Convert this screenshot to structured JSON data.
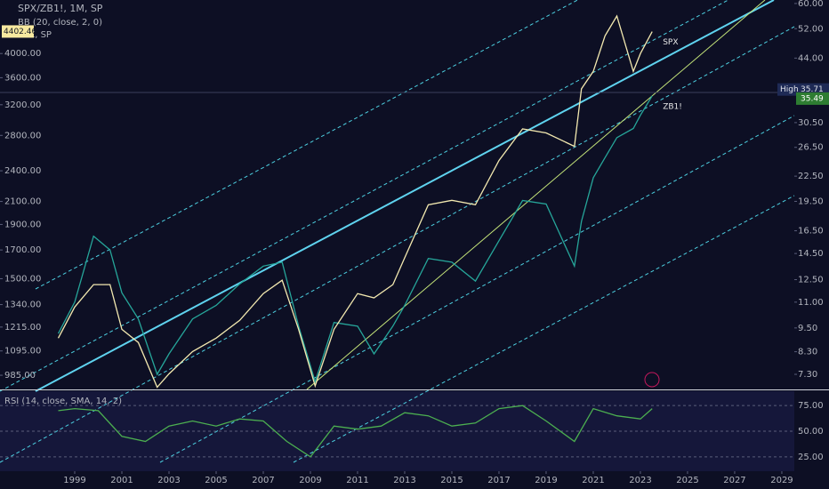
{
  "chart_data": [
    {
      "type": "line",
      "title": "SPX/ZB1!, 1M, SP",
      "indicators": [
        "BB (20, close, 2, 0)",
        "SPX, SP"
      ],
      "x": [
        1998.3,
        1999.0,
        1999.8,
        2000.5,
        2001.0,
        2001.7,
        2002.5,
        2003.0,
        2004.0,
        2005.0,
        2006.0,
        2007.0,
        2007.8,
        2008.5,
        2009.2,
        2010.0,
        2011.0,
        2011.7,
        2012.5,
        2013.0,
        2014.0,
        2015.0,
        2016.0,
        2017.0,
        2018.0,
        2019.0,
        2020.2,
        2020.5,
        2021.0,
        2021.5,
        2022.0,
        2022.7,
        2023.0,
        2023.5
      ],
      "series": [
        {
          "name": "ZB1!",
          "color": "#26a69a",
          "axis": "y2",
          "values": [
            9.2,
            11.0,
            16.0,
            14.8,
            11.6,
            10.0,
            7.3,
            8.2,
            10.0,
            10.8,
            12.2,
            13.5,
            13.8,
            9.6,
            7.0,
            9.8,
            9.6,
            8.2,
            9.6,
            10.8,
            14.1,
            13.8,
            12.4,
            15.6,
            19.6,
            19.2,
            13.5,
            17.4,
            22.3,
            25.0,
            28.0,
            29.5,
            31.8,
            35.5
          ]
        },
        {
          "name": "SPX",
          "color": "#f3e9b0",
          "values": [
            1158,
            1326,
            1462,
            1462,
            1203,
            1136,
            935,
            991,
            1092,
            1158,
            1251,
            1406,
            1490,
            1203,
            940,
            1203,
            1406,
            1380,
            1462,
            1643,
            2070,
            2110,
            2070,
            2510,
            2880,
            2830,
            2670,
            3430,
            3700,
            4320,
            4710,
            3700,
            4000,
            4400
          ]
        }
      ],
      "log_scale": true,
      "xlim": [
        1995.83,
        2029.53
      ],
      "xticks": [
        1999,
        2001,
        2003,
        2005,
        2007,
        2009,
        2011,
        2013,
        2015,
        2017,
        2019,
        2021,
        2023,
        2025,
        2027,
        2029
      ],
      "ylim": [
        926,
        5050
      ],
      "yticks": [
        {
          "value": 985,
          "label": "985.00"
        },
        {
          "value": 1095,
          "label": "1095.00"
        },
        {
          "value": 1215,
          "label": "1215.00"
        },
        {
          "value": 1340,
          "label": "1340.00"
        },
        {
          "value": 1500,
          "label": "1500.00"
        },
        {
          "value": 1700,
          "label": "1700.00"
        },
        {
          "value": 1900,
          "label": "1900.00"
        },
        {
          "value": 2100,
          "label": "2100.00"
        },
        {
          "value": 2400,
          "label": "2400.00"
        },
        {
          "value": 2800,
          "label": "2800.00"
        },
        {
          "value": 3200,
          "label": "3200.00"
        },
        {
          "value": 3600,
          "label": "3600.00"
        },
        {
          "value": 4000,
          "label": "4000.00"
        }
      ],
      "y2lim": [
        6.7,
        61.2
      ],
      "y2ticks": [
        {
          "value": 7.3,
          "label": "7.30"
        },
        {
          "value": 8.3,
          "label": "8.30"
        },
        {
          "value": 9.5,
          "label": "9.50"
        },
        {
          "value": 11,
          "label": "11.00"
        },
        {
          "value": 12.5,
          "label": "12.50"
        },
        {
          "value": 14.5,
          "label": "14.50"
        },
        {
          "value": 16.5,
          "label": "16.50"
        },
        {
          "value": 19.5,
          "label": "19.50"
        },
        {
          "value": 22.5,
          "label": "22.50"
        },
        {
          "value": 26.5,
          "label": "26.50"
        },
        {
          "value": 30.5,
          "label": "30.50"
        },
        {
          "value": 44,
          "label": "44.00"
        },
        {
          "value": 52,
          "label": "52.00"
        },
        {
          "value": 60,
          "label": "60.00"
        }
      ],
      "spx_last": 4402.46,
      "high_label": "High",
      "high": 35.71,
      "last": 35.49
    },
    {
      "type": "line",
      "title": "RSI (14, close, SMA, 14, 2)",
      "x": [
        1998.3,
        1999.0,
        2000.0,
        2001.0,
        2002.0,
        2003.0,
        2004.0,
        2005.0,
        2006.0,
        2007.0,
        2008.0,
        2009.0,
        2010.0,
        2011.0,
        2012.0,
        2013.0,
        2014.0,
        2015.0,
        2016.0,
        2017.0,
        2018.0,
        2019.0,
        2020.2,
        2021.0,
        2022.0,
        2023.0,
        2023.5
      ],
      "series": [
        {
          "color": "#4caf50",
          "values": [
            70,
            72,
            70,
            45,
            40,
            55,
            60,
            55,
            62,
            60,
            40,
            25,
            55,
            52,
            55,
            68,
            65,
            55,
            58,
            72,
            75,
            60,
            40,
            72,
            65,
            62,
            72
          ]
        }
      ],
      "xlim": [
        1995.83,
        2029.53
      ],
      "ylim": [
        11,
        89
      ],
      "yticks": [
        {
          "value": 25,
          "label": "25.00"
        },
        {
          "value": 50,
          "label": "50.00"
        },
        {
          "value": 75,
          "label": "75.00"
        }
      ]
    }
  ]
}
